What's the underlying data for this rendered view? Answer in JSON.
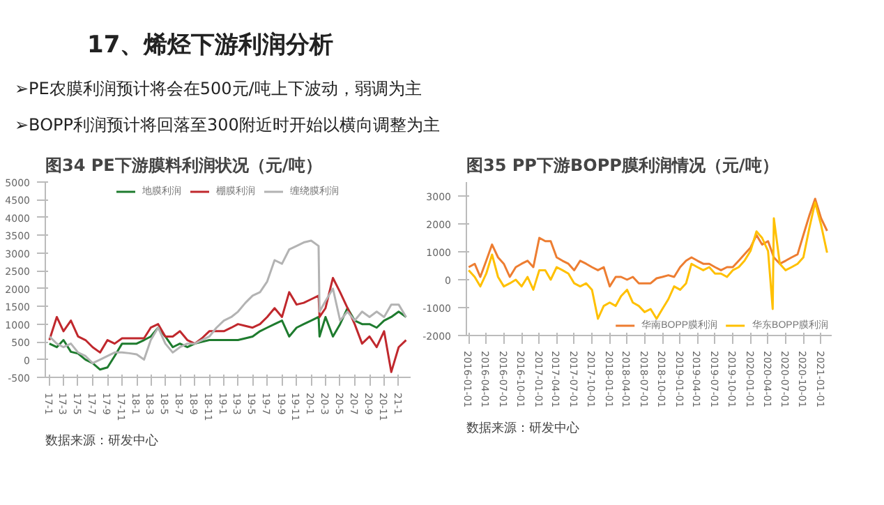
{
  "chart_data": [
    {
      "type": "line",
      "title": "图34 PE下游膜料利润状况（元/吨）",
      "annotations": [
        "17、烯烃下游利润分析",
        "➢PE农膜利润预计将会在500元/吨上下波动，弱调为主",
        "➢BOPP利润预计将回落至300附近时开始以横向调整为主",
        "数据来源：研发中心"
      ],
      "xlim": [
        "2016-12-15",
        "2021-02-20"
      ],
      "ylim": [
        -500,
        5000
      ],
      "yticks": [
        -500,
        0,
        500,
        1000,
        1500,
        2000,
        2500,
        3000,
        3500,
        4000,
        4500,
        5000
      ],
      "xticks": [
        {
          "value": "2017-01",
          "label": "17-1"
        },
        {
          "value": "2017-03",
          "label": "17-3"
        },
        {
          "value": "2017-05",
          "label": "17-5"
        },
        {
          "value": "2017-07",
          "label": "17-7"
        },
        {
          "value": "2017-09",
          "label": "17-9"
        },
        {
          "value": "2017-11",
          "label": "17-11"
        },
        {
          "value": "2018-01",
          "label": "18-1"
        },
        {
          "value": "2018-03",
          "label": "18-3"
        },
        {
          "value": "2018-05",
          "label": "18-5"
        },
        {
          "value": "2018-07",
          "label": "18-7"
        },
        {
          "value": "2018-09",
          "label": "18-9"
        },
        {
          "value": "2018-11",
          "label": "18-11"
        },
        {
          "value": "2019-01",
          "label": "19-1"
        },
        {
          "value": "2019-03",
          "label": "19-3"
        },
        {
          "value": "2019-05",
          "label": "19-5"
        },
        {
          "value": "2019-07",
          "label": "19-7"
        },
        {
          "value": "2019-09",
          "label": "19-9"
        },
        {
          "value": "2019-11",
          "label": "19-11"
        },
        {
          "value": "2020-01",
          "label": "20-1"
        },
        {
          "value": "2020-03",
          "label": "20-3"
        },
        {
          "value": "2020-05",
          "label": "20-5"
        },
        {
          "value": "2020-07",
          "label": "20-7"
        },
        {
          "value": "2020-09",
          "label": "20-9"
        },
        {
          "value": "2020-11",
          "label": "20-11"
        },
        {
          "value": "2021-01",
          "label": "21-1"
        }
      ],
      "grid": false,
      "legend": "top",
      "x": [
        "2017-01",
        "2017-02",
        "2017-03",
        "2017-04",
        "2017-05",
        "2017-06",
        "2017-07",
        "2017-08",
        "2017-09",
        "2017-10",
        "2017-11",
        "2017-12",
        "2018-01",
        "2018-02",
        "2018-03",
        "2018-04",
        "2018-05",
        "2018-06",
        "2018-07",
        "2018-08",
        "2018-09",
        "2018-10",
        "2018-11",
        "2018-12",
        "2019-01",
        "2019-02",
        "2019-03",
        "2019-04",
        "2019-05",
        "2019-06",
        "2019-07",
        "2019-08",
        "2019-09",
        "2019-10",
        "2019-11",
        "2019-12",
        "2020-01",
        "2020-02-01",
        "2020-02-05",
        "2020-03",
        "2020-04",
        "2020-05",
        "2020-06",
        "2020-07",
        "2020-08",
        "2020-09",
        "2020-10",
        "2020-11",
        "2020-12",
        "2021-01",
        "2021-02"
      ],
      "series": [
        {
          "name": "地膜利润",
          "color": "#1e7b2e",
          "values": [
            450,
            350,
            550,
            220,
            170,
            0,
            -100,
            -280,
            -220,
            100,
            450,
            450,
            450,
            550,
            650,
            900,
            650,
            350,
            450,
            350,
            450,
            500,
            550,
            550,
            550,
            550,
            550,
            600,
            650,
            800,
            900,
            1000,
            1100,
            650,
            900,
            1000,
            1100,
            1200,
            650,
            1200,
            650,
            1000,
            1450,
            1100,
            1000,
            1000,
            900,
            1100,
            1200,
            1350,
            1200
          ]
        },
        {
          "name": "棚膜利润",
          "color": "#c0282d",
          "values": [
            550,
            1200,
            800,
            1100,
            650,
            550,
            350,
            200,
            550,
            450,
            600,
            600,
            600,
            600,
            900,
            1000,
            650,
            650,
            800,
            550,
            450,
            600,
            800,
            800,
            800,
            900,
            1000,
            950,
            900,
            1000,
            1200,
            1450,
            1200,
            1900,
            1550,
            1600,
            1700,
            1800,
            1200,
            1450,
            2300,
            1900,
            1450,
            1000,
            450,
            650,
            350,
            800,
            -350,
            350,
            550
          ]
        },
        {
          "name": "缠绕膜利润",
          "color": "#b3b3b3",
          "values": [
            650,
            450,
            350,
            450,
            200,
            100,
            -100,
            0,
            100,
            200,
            200,
            180,
            150,
            0,
            550,
            900,
            450,
            200,
            350,
            450,
            450,
            550,
            650,
            900,
            1100,
            1200,
            1350,
            1600,
            1800,
            1900,
            2200,
            2800,
            2700,
            3100,
            3200,
            3300,
            3350,
            3200,
            1350,
            1650,
            2000,
            1100,
            1350,
            1100,
            1350,
            1200,
            1350,
            1200,
            1550,
            1550,
            1200
          ]
        }
      ]
    },
    {
      "type": "line",
      "title": "图35 PP下游BOPP膜利润情况（元/吨）",
      "annotations": [
        "数据来源：研发中心"
      ],
      "xlim": [
        "2015-12-20",
        "2021-02-25"
      ],
      "ylim": [
        -2000,
        3500
      ],
      "yticks": [
        -2000,
        -1000,
        0,
        1000,
        2000,
        3000
      ],
      "xticks": [
        "2016-01-01",
        "2016-04-01",
        "2016-07-01",
        "2016-10-01",
        "2017-01-01",
        "2017-04-01",
        "2017-07-01",
        "2017-10-01",
        "2018-01-01",
        "2018-04-01",
        "2018-07-01",
        "2018-10-01",
        "2019-01-01",
        "2019-04-01",
        "2019-07-01",
        "2019-10-01",
        "2020-01-01",
        "2020-04-01",
        "2020-07-01",
        "2020-10-01",
        "2021-01-01"
      ],
      "grid": false,
      "legend": "bottom right",
      "series": [
        {
          "name": "华南BOPP膜利润",
          "color": "#ed7d31",
          "x": [
            "2016-01",
            "2016-02",
            "2016-03",
            "2016-04",
            "2016-05",
            "2016-06",
            "2016-07",
            "2016-08",
            "2016-09",
            "2016-10",
            "2016-11",
            "2016-12",
            "2017-01",
            "2017-02",
            "2017-03",
            "2017-04",
            "2017-05",
            "2017-06",
            "2017-07",
            "2017-08",
            "2017-09",
            "2017-10",
            "2017-11",
            "2017-12",
            "2018-01",
            "2018-02",
            "2018-03",
            "2018-04",
            "2018-05",
            "2018-06",
            "2018-07",
            "2018-08",
            "2018-09",
            "2018-10",
            "2018-11",
            "2018-12",
            "2019-01",
            "2019-02",
            "2019-03",
            "2019-04",
            "2019-05",
            "2019-06",
            "2019-07",
            "2019-08",
            "2019-09",
            "2019-10",
            "2019-11",
            "2019-12",
            "2020-01",
            "2020-02",
            "2020-03",
            "2020-04",
            "2020-05",
            "2020-06",
            "2020-07",
            "2020-08",
            "2020-09",
            "2020-10",
            "2020-11",
            "2020-12",
            "2021-01",
            "2021-02"
          ],
          "values": [
            450,
            570,
            100,
            680,
            1260,
            800,
            570,
            100,
            450,
            570,
            680,
            450,
            1500,
            1380,
            1380,
            800,
            680,
            570,
            340,
            680,
            570,
            450,
            340,
            450,
            -240,
            100,
            100,
            0,
            100,
            -130,
            -130,
            -130,
            50,
            100,
            160,
            100,
            450,
            680,
            800,
            680,
            570,
            570,
            450,
            340,
            450,
            450,
            680,
            910,
            1150,
            1600,
            1260,
            1380,
            800,
            570,
            680,
            800,
            910,
            1600,
            2300,
            2900,
            2200,
            1750
          ]
        },
        {
          "name": "华东BOPP膜利润",
          "color": "#ffc000",
          "x": [
            "2016-01",
            "2016-02",
            "2016-03",
            "2016-04",
            "2016-05",
            "2016-06",
            "2016-07",
            "2016-08",
            "2016-09",
            "2016-10",
            "2016-11",
            "2016-12",
            "2017-01",
            "2017-02",
            "2017-03",
            "2017-04",
            "2017-05",
            "2017-06",
            "2017-07",
            "2017-08",
            "2017-09",
            "2017-10",
            "2017-11",
            "2017-12",
            "2018-01",
            "2018-02",
            "2018-03",
            "2018-04",
            "2018-05",
            "2018-06",
            "2018-07",
            "2018-08",
            "2018-09",
            "2018-10",
            "2018-11",
            "2018-12",
            "2019-01",
            "2019-02",
            "2019-03",
            "2019-04",
            "2019-05",
            "2019-06",
            "2019-07",
            "2019-08",
            "2019-09",
            "2019-10",
            "2019-11",
            "2019-12",
            "2020-01",
            "2020-02",
            "2020-03",
            "2020-04",
            "2020-04-25",
            "2020-05-01",
            "2020-06",
            "2020-07",
            "2020-08",
            "2020-09",
            "2020-10",
            "2020-11",
            "2020-12",
            "2021-01",
            "2021-02"
          ],
          "values": [
            340,
            100,
            -240,
            220,
            900,
            100,
            -240,
            -130,
            0,
            -240,
            100,
            -360,
            340,
            340,
            0,
            450,
            340,
            220,
            -130,
            -240,
            -130,
            -360,
            -1400,
            -940,
            -820,
            -940,
            -590,
            -360,
            -820,
            -940,
            -1160,
            -1050,
            -1400,
            -1050,
            -700,
            -240,
            -360,
            -130,
            570,
            450,
            340,
            450,
            220,
            220,
            100,
            340,
            450,
            680,
            1030,
            1730,
            1500,
            1030,
            -1050,
            2200,
            570,
            340,
            450,
            570,
            800,
            1850,
            2770,
            1960,
            970
          ]
        }
      ]
    }
  ]
}
